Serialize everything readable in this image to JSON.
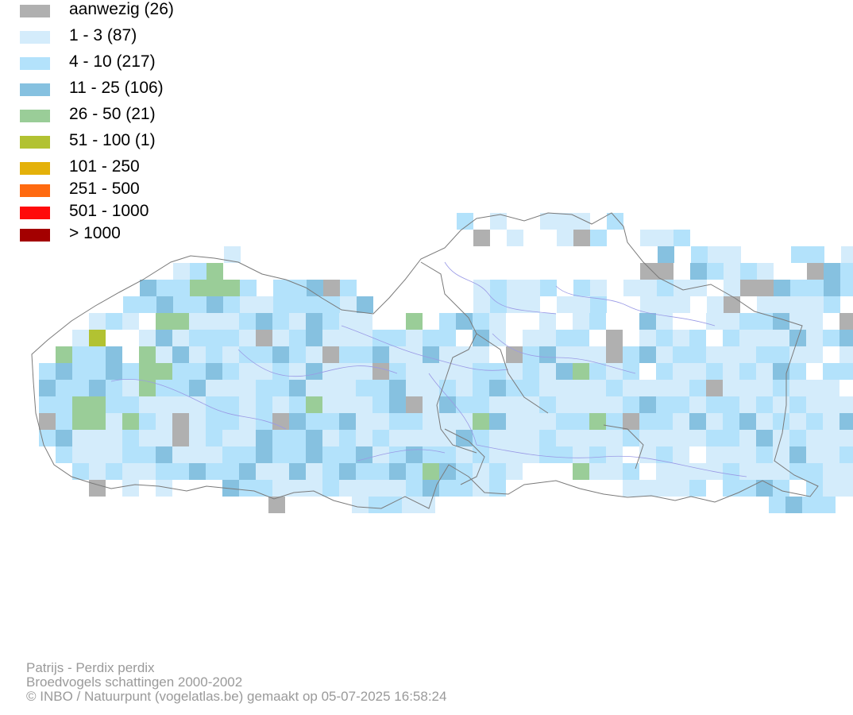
{
  "legend": {
    "items": [
      {
        "label": "aanwezig (26)",
        "color": "#b0b0b0"
      },
      {
        "label": "1 - 3 (87)",
        "color": "#d4ecfb"
      },
      {
        "label": "4 - 10 (217)",
        "color": "#b3e2fb"
      },
      {
        "label": "11 - 25 (106)",
        "color": "#86c1e0"
      },
      {
        "label": "26 - 50 (21)",
        "color": "#9acd98"
      },
      {
        "label": "51 - 100 (1)",
        "color": "#b2c232"
      },
      {
        "label": "101 - 250",
        "color": "#e4b10a"
      },
      {
        "label": "251 - 500",
        "color": "#ff6a10"
      },
      {
        "label": "501 - 1000",
        "color": "#ff0a0a"
      },
      {
        "label": "> 1000",
        "color": "#a30000"
      }
    ]
  },
  "map": {
    "border_color": "#7a7a7a",
    "river_color": "#9a9ae6"
  },
  "footer": {
    "species": "Patrijs - Perdix perdix",
    "subtitle": "Broedvogels schattingen 2000-2002",
    "credit": "© INBO / Natuurpunt (vogelatlas.be) gemaakt op 05-07-2025 16:58:24"
  }
}
